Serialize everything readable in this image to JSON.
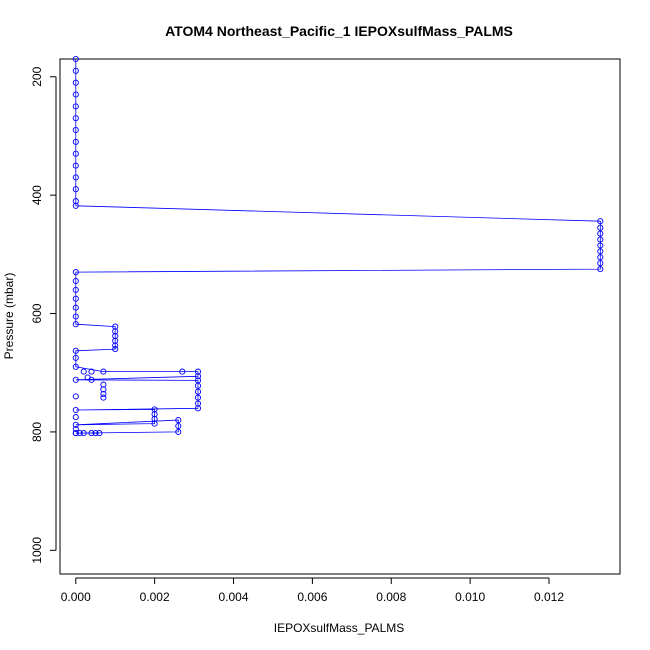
{
  "chart_data": {
    "type": "scatter",
    "title": "ATOM4 Northeast_Pacific_1 IEPOXsulfMass_PALMS",
    "xlabel": "IEPOXsulfMass_PALMS",
    "ylabel": "Pressure (mbar)",
    "xlim": [
      -0.0004,
      0.0138
    ],
    "ylim": [
      1040,
      170
    ],
    "y_reversed": true,
    "grid": false,
    "legend": "none",
    "x_ticks": [
      {
        "value": 0.0,
        "label": "0.000"
      },
      {
        "value": 0.002,
        "label": "0.002"
      },
      {
        "value": 0.004,
        "label": "0.004"
      },
      {
        "value": 0.006,
        "label": "0.006"
      },
      {
        "value": 0.008,
        "label": "0.008"
      },
      {
        "value": 0.01,
        "label": "0.010"
      },
      {
        "value": 0.012,
        "label": "0.012"
      }
    ],
    "y_ticks": [
      {
        "value": 200,
        "label": "200"
      },
      {
        "value": 400,
        "label": "400"
      },
      {
        "value": 600,
        "label": "600"
      },
      {
        "value": 800,
        "label": "800"
      },
      {
        "value": 1000,
        "label": "1000"
      }
    ],
    "series": [
      {
        "color": "#0000ff",
        "marker": "open-circle",
        "line": true,
        "points": [
          [
            0.0,
            170
          ],
          [
            0.0,
            190
          ],
          [
            0.0,
            210
          ],
          [
            0.0,
            230
          ],
          [
            0.0,
            250
          ],
          [
            0.0,
            270
          ],
          [
            0.0,
            290
          ],
          [
            0.0,
            310
          ],
          [
            0.0,
            330
          ],
          [
            0.0,
            350
          ],
          [
            0.0,
            370
          ],
          [
            0.0,
            390
          ],
          [
            0.0,
            410
          ],
          [
            0.0,
            418
          ],
          [
            0.0133,
            444
          ],
          [
            0.0133,
            455
          ],
          [
            0.0133,
            465
          ],
          [
            0.0133,
            475
          ],
          [
            0.0133,
            485
          ],
          [
            0.0133,
            495
          ],
          [
            0.0133,
            505
          ],
          [
            0.0133,
            515
          ],
          [
            0.0133,
            525
          ],
          [
            0.0,
            530
          ],
          [
            0.0,
            545
          ],
          [
            0.0,
            560
          ],
          [
            0.0,
            575
          ],
          [
            0.0,
            590
          ],
          [
            0.0,
            605
          ],
          [
            0.0,
            618
          ],
          [
            0.001,
            622
          ],
          [
            0.001,
            630
          ],
          [
            0.001,
            638
          ],
          [
            0.001,
            646
          ],
          [
            0.001,
            654
          ],
          [
            0.001,
            660
          ],
          [
            0.0,
            663
          ],
          [
            0.0,
            675
          ],
          [
            0.0,
            690
          ],
          [
            0.0007,
            698
          ],
          [
            0.0027,
            698
          ],
          [
            0.0031,
            698
          ],
          [
            0.0031,
            706
          ],
          [
            0.0,
            712
          ],
          [
            0.0031,
            713
          ],
          [
            0.0031,
            722
          ],
          [
            0.0031,
            732
          ],
          [
            0.0031,
            742
          ],
          [
            0.0031,
            752
          ],
          [
            0.0031,
            760
          ],
          [
            0.0,
            763
          ],
          [
            0.002,
            762
          ],
          [
            0.002,
            770
          ],
          [
            0.002,
            778
          ],
          [
            0.002,
            786
          ],
          [
            0.0,
            788
          ],
          [
            0.0026,
            780
          ],
          [
            0.0026,
            790
          ],
          [
            0.0026,
            800
          ],
          [
            0.0,
            802
          ],
          [
            0.0006,
            802
          ],
          [
            0.0,
            802
          ]
        ],
        "extra_points": [
          [
            0.0002,
            698
          ],
          [
            0.0004,
            698
          ],
          [
            0.0003,
            708
          ],
          [
            0.0004,
            712
          ],
          [
            0.0007,
            720
          ],
          [
            0.0007,
            728
          ],
          [
            0.0007,
            736
          ],
          [
            0.0007,
            742
          ],
          [
            0.0004,
            802
          ],
          [
            0.0005,
            802
          ],
          [
            0.0002,
            802
          ],
          [
            0.0001,
            802
          ],
          [
            0.0,
            740
          ],
          [
            0.0,
            775
          ],
          [
            0.0,
            795
          ]
        ]
      }
    ]
  }
}
